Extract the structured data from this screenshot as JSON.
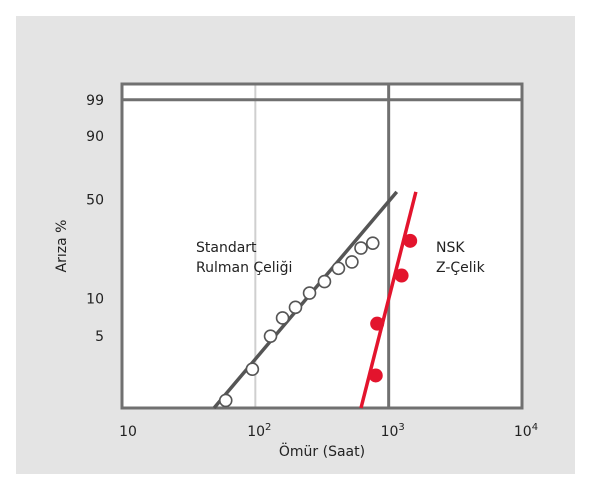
{
  "chart_data": {
    "type": "scatter",
    "title": "",
    "xlabel": "Ömür (Saat)",
    "ylabel": "Arıza %",
    "x_scale": "log",
    "y_scale": "weibull",
    "xlim": [
      10,
      10000
    ],
    "ylim_percent": [
      1.3,
      99.8
    ],
    "x_ticks": [
      {
        "value": 10,
        "base": "10",
        "exp": ""
      },
      {
        "value": 100,
        "base": "10",
        "exp": "2"
      },
      {
        "value": 1000,
        "base": "10",
        "exp": "3"
      },
      {
        "value": 10000,
        "base": "10",
        "exp": "4"
      }
    ],
    "y_ticks": [
      {
        "value": 99,
        "label": "99"
      },
      {
        "value": 90,
        "label": "90"
      },
      {
        "value": 50,
        "label": "50"
      },
      {
        "value": 10,
        "label": "10"
      },
      {
        "value": 5,
        "label": "5"
      }
    ],
    "grid": {
      "x_lines_at": [
        100,
        1000
      ],
      "y_lines_at": [
        99
      ]
    },
    "series": [
      {
        "name_lines": [
          "Standart",
          "Rulman Çeliği"
        ],
        "marker": "open-circle",
        "color": "#555555",
        "points": [
          [
            60,
            1.5
          ],
          [
            95,
            2.7
          ],
          [
            130,
            5.0
          ],
          [
            160,
            7.0
          ],
          [
            200,
            8.5
          ],
          [
            255,
            11.0
          ],
          [
            330,
            13.5
          ],
          [
            420,
            17.0
          ],
          [
            530,
            19.0
          ],
          [
            620,
            24.0
          ],
          [
            760,
            26.0
          ]
        ],
        "fit_line": [
          [
            49,
            1.3
          ],
          [
            1150,
            55
          ]
        ]
      },
      {
        "name_lines": [
          "NSK",
          "Z-Çelik"
        ],
        "marker": "filled-circle",
        "color": "#e3142d",
        "points": [
          [
            800,
            2.4
          ],
          [
            820,
            6.3
          ],
          [
            1250,
            15.0
          ],
          [
            1450,
            27.0
          ]
        ],
        "fit_line": [
          [
            620,
            1.3
          ],
          [
            1600,
            55
          ]
        ]
      }
    ],
    "background_color": "#e4e4e4",
    "plot_background_color": "#ffffff",
    "axis_color": "#707070"
  }
}
